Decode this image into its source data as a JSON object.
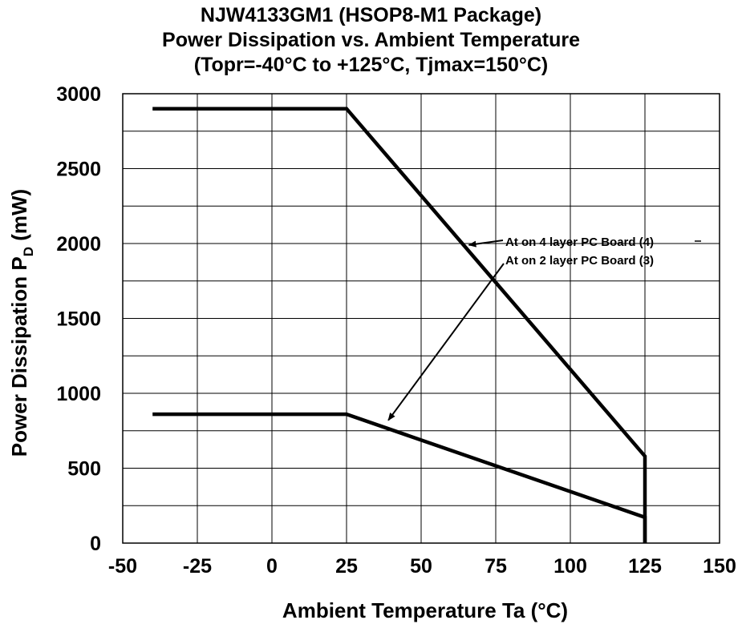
{
  "chart_data": {
    "type": "line",
    "title": "NJW4133GM1 (HSOP8-M1 Package)",
    "subtitle": "Power Dissipation vs. Ambient Temperature",
    "subtitle2": "(Topr=-40°C to +125°C, Tjmax=150°C)",
    "xlabel": "Ambient Temperature  Ta  (°C)",
    "ylabel_main": "Power Dissipation  P",
    "ylabel_sub": "D",
    "ylabel_unit": " (mW)",
    "xlim": [
      -50,
      150
    ],
    "ylim": [
      0,
      3000
    ],
    "xticks": [
      -50,
      -25,
      0,
      25,
      50,
      75,
      100,
      125,
      150
    ],
    "yticks": [
      0,
      500,
      1000,
      1500,
      2000,
      2500,
      3000
    ],
    "ygrid": [
      250,
      500,
      750,
      1000,
      1250,
      1500,
      1750,
      2000,
      2250,
      2500,
      2750
    ],
    "grid": true,
    "series": [
      {
        "label": "At on 4 layer PC Board (4)",
        "x": [
          -40,
          25,
          125,
          125
        ],
        "y": [
          2900,
          2900,
          580,
          0
        ]
      },
      {
        "label": "At on 2 layer PC Board (3)",
        "x": [
          -40,
          25,
          125,
          125
        ],
        "y": [
          860,
          860,
          172,
          0
        ]
      }
    ],
    "annotations": [
      {
        "text": "At on 4 layer PC Board (4)",
        "series": 0,
        "arrow_to": [
          66,
          1990
        ]
      },
      {
        "text": "At on 2 layer PC Board (3)",
        "series": 1,
        "arrow_to": [
          39,
          820
        ]
      }
    ]
  }
}
